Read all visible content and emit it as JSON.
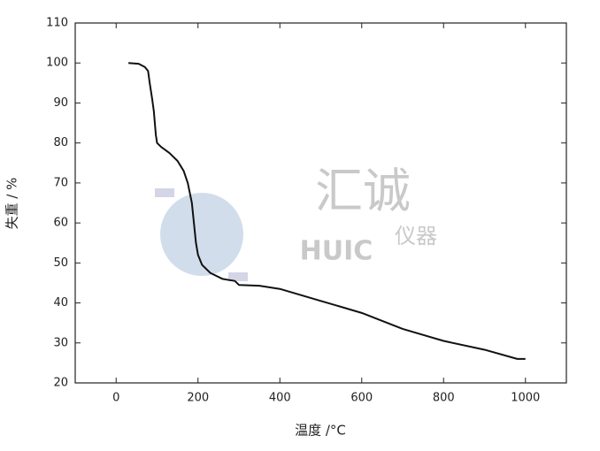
{
  "chart_data": {
    "type": "line",
    "x_label": "温度 /°C",
    "y_label": "失重 / %",
    "xlim": [
      -100,
      1100
    ],
    "xticks": [
      0,
      200,
      400,
      600,
      800,
      1000
    ],
    "ylim": [
      20,
      110
    ],
    "yticks": [
      20,
      30,
      40,
      50,
      60,
      70,
      80,
      90,
      100,
      110
    ],
    "series": [
      {
        "color": "#111111",
        "x": [
          30,
          55,
          70,
          78,
          82,
          88,
          92,
          97,
          100,
          110,
          130,
          150,
          165,
          175,
          185,
          190,
          195,
          200,
          210,
          230,
          260,
          290,
          300,
          350,
          400,
          500,
          600,
          700,
          800,
          900,
          980,
          1000
        ],
        "values": [
          100,
          99.8,
          99,
          98,
          95,
          91,
          88,
          82,
          80,
          79,
          77.5,
          75.5,
          73,
          70,
          65,
          60,
          55,
          52,
          49.5,
          47.5,
          46,
          45.5,
          44.5,
          44.3,
          43.5,
          40.5,
          37.5,
          33.5,
          30.5,
          28.3,
          26,
          26
        ]
      }
    ],
    "watermark": [
      "汇诚",
      "HUIC",
      "仪器"
    ]
  }
}
